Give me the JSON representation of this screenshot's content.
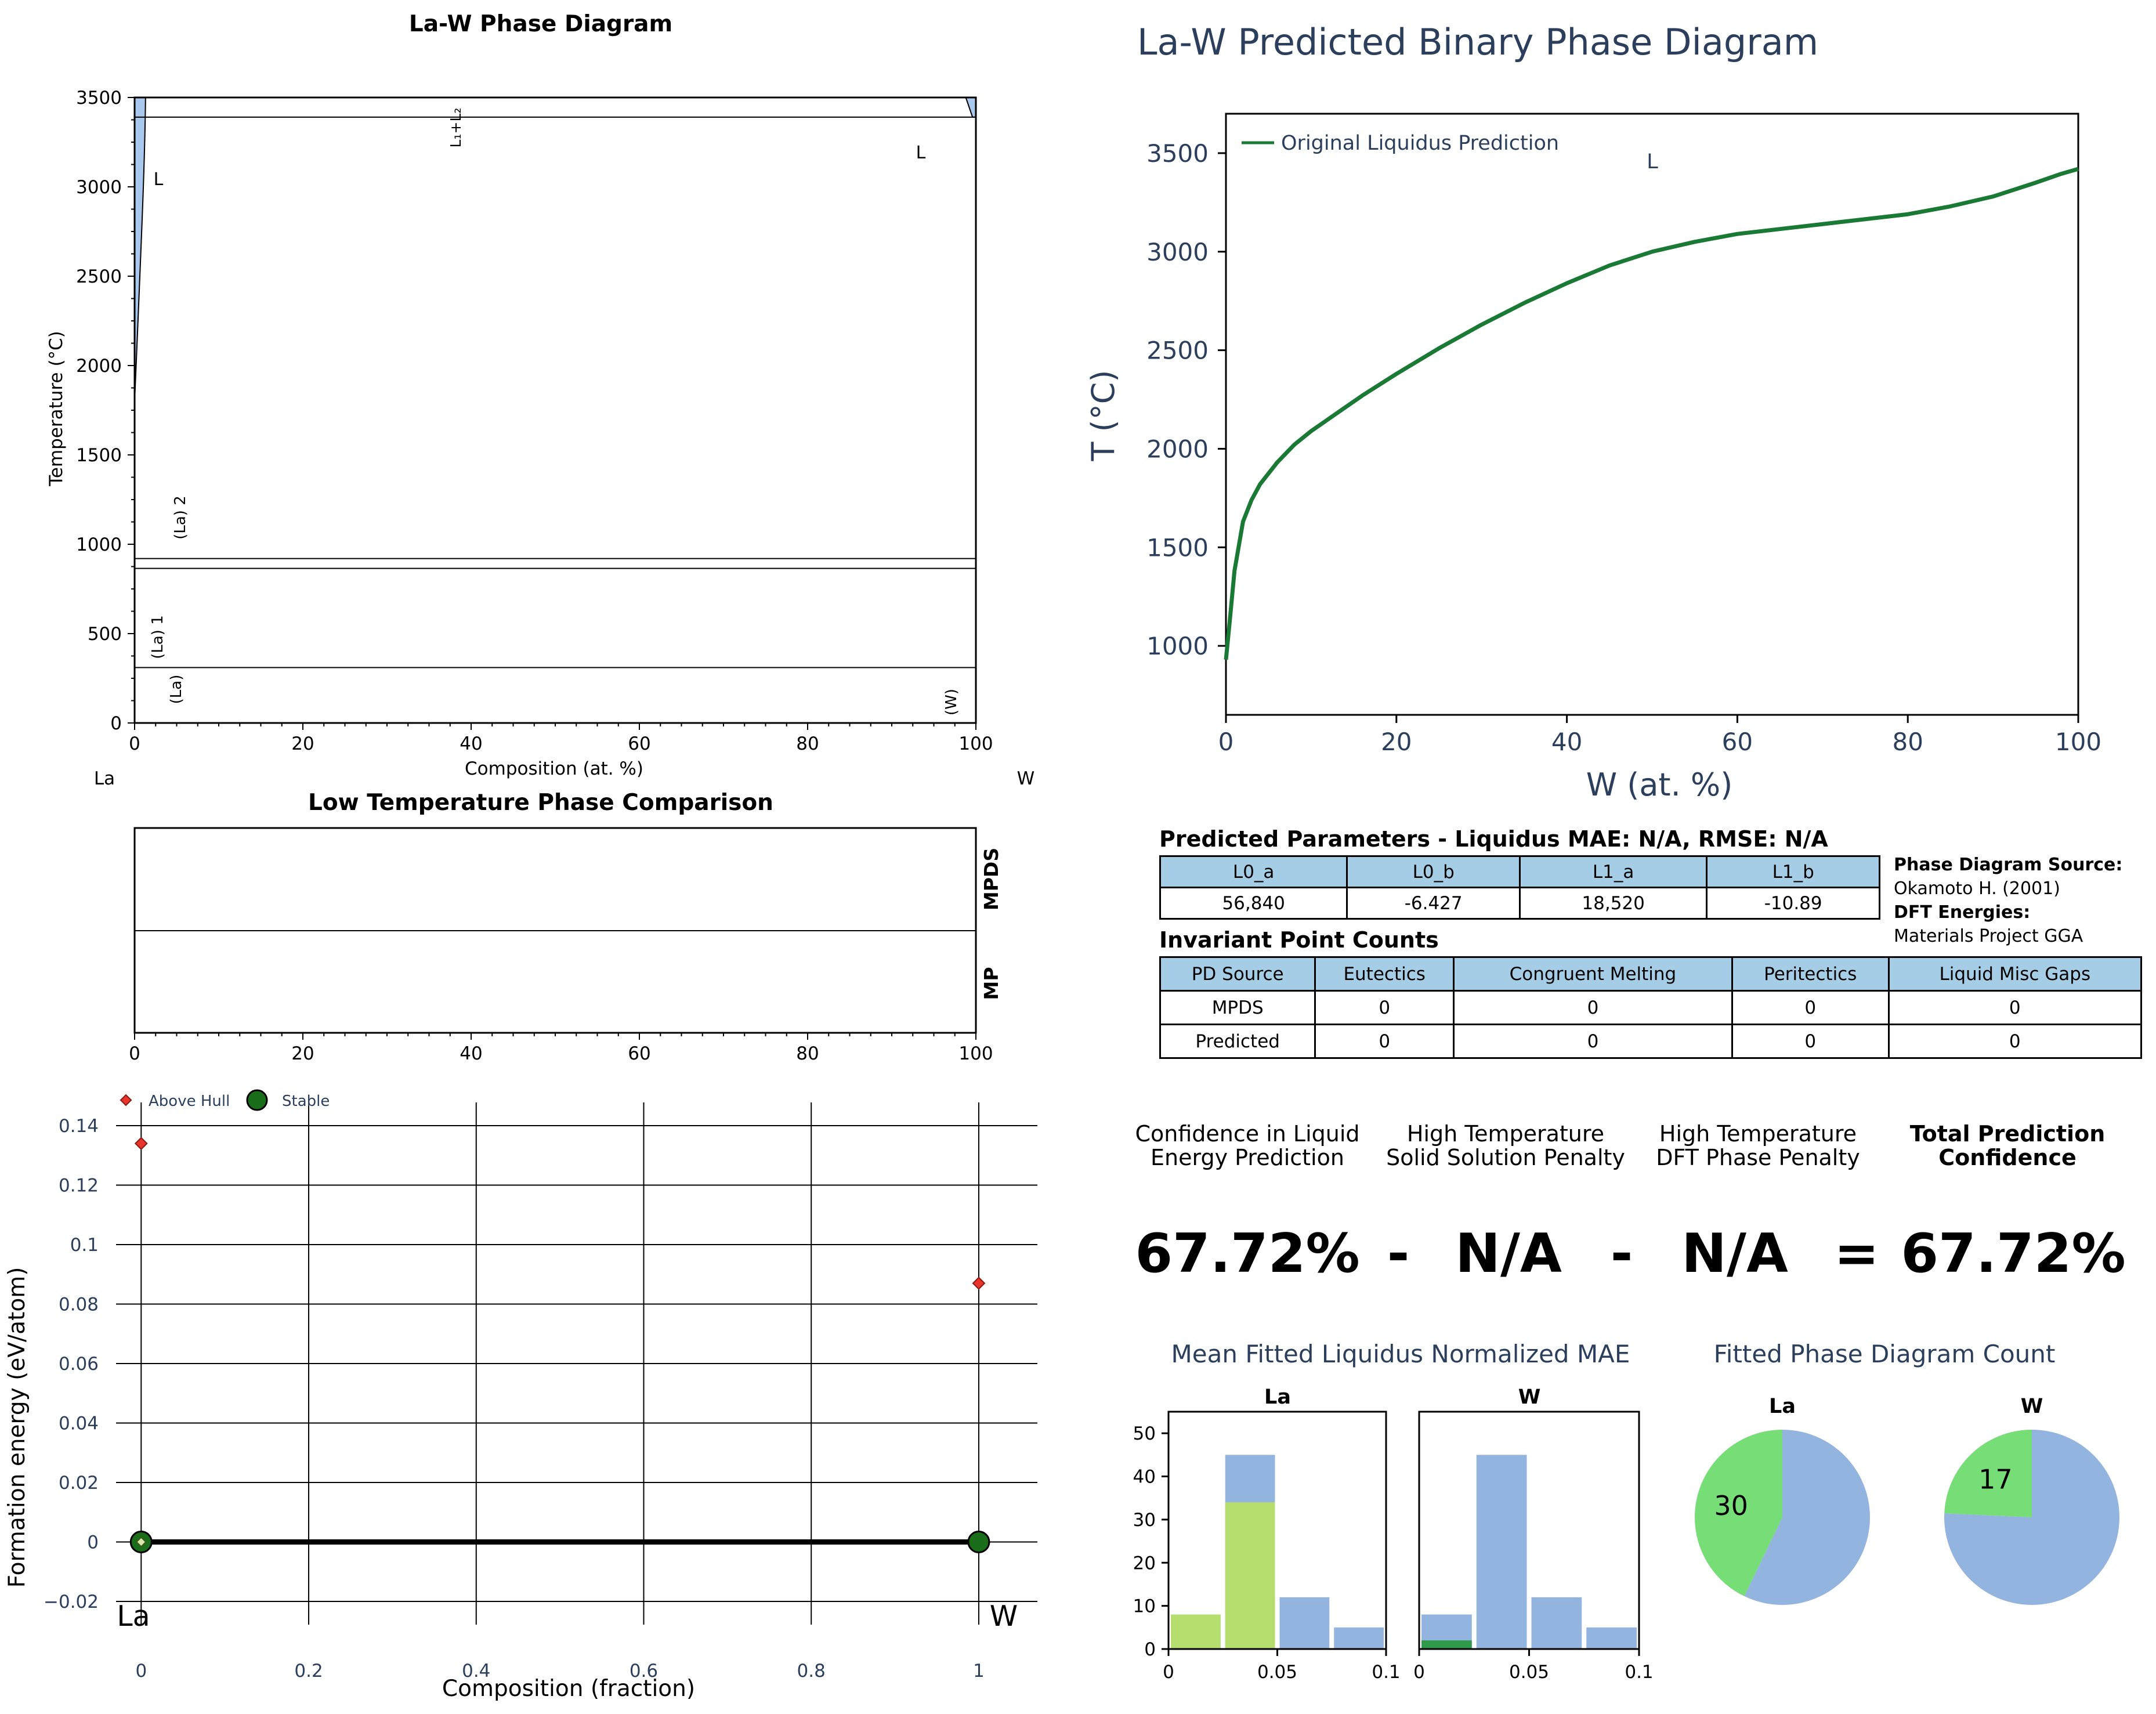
{
  "phase_diagram": {
    "title": "La-W Phase Diagram",
    "ylabel": "Temperature ($^\\circ$C)",
    "xlabel": "Composition (at. %)",
    "left_element": "La",
    "right_element": "W",
    "region_labels": {
      "L_left": "L",
      "L_right": "L",
      "L1L2": "L$_1$+L$_2$",
      "La2": "(La) 2",
      "La1": "(La) 1",
      "La": "(La)",
      "W": "(W)"
    }
  },
  "low_temp": {
    "title": "Low Temperature Phase Comparison",
    "row_labels": [
      "MPDS",
      "MP"
    ]
  },
  "hull": {
    "ylabel": "Formation energy (eV/atom)",
    "xlabel": "Composition (fraction)",
    "legend": [
      "Above Hull",
      "Stable"
    ],
    "left_element": "La",
    "right_element": "W"
  },
  "predicted": {
    "title": "La-W Predicted Binary Phase Diagram",
    "ylabel": "T (°C)",
    "xlabel": "W (at. %)",
    "legend": "Original Liquidus Prediction",
    "region_label": "L"
  },
  "params": {
    "title": "Predicted Parameters - Liquidus MAE: N/A, RMSE: N/A",
    "headers": [
      "L0_a",
      "L0_b",
      "L1_a",
      "L1_b"
    ],
    "values": [
      "56,840",
      "-6.427",
      "18,520",
      "-10.89"
    ]
  },
  "source": {
    "pd_label": "Phase Diagram Source:",
    "pd_value": "Okamoto H. (2001)",
    "dft_label": "DFT Energies:",
    "dft_value": "Materials Project GGA"
  },
  "invariants": {
    "title": "Invariant Point Counts",
    "headers": [
      "PD Source",
      "Eutectics",
      "Congruent Melting",
      "Peritectics",
      "Liquid Misc Gaps"
    ],
    "rows": [
      [
        "MPDS",
        "0",
        "0",
        "0",
        "0"
      ],
      [
        "Predicted",
        "0",
        "0",
        "0",
        "0"
      ]
    ]
  },
  "confidence": {
    "labels": [
      "Confidence in Liquid\nEnergy Prediction",
      "High Temperature\nSolid Solution Penalty",
      "High Temperature\nDFT Phase Penalty",
      "Total Prediction\nConfidence"
    ],
    "values": [
      "67.72%",
      "N/A",
      "N/A",
      "67.72%"
    ],
    "operators": [
      "-",
      "-",
      "="
    ]
  },
  "mae_title": "Mean Fitted Liquidus Normalized MAE",
  "count_title": "Fitted Phase Diagram Count",
  "colors": {
    "text_blue": "#2b3f5c",
    "liquidus": "#1a7a35",
    "hist_blue": "#93b4de",
    "hist_green": "#b5de6e",
    "hist_dark_green": "#2e9a4a",
    "pie_green": "#77dd77",
    "phase_fill": "#a8c8ee",
    "above_hull": "#e8342a",
    "stable": "#1a6e1a"
  },
  "chart_data": [
    {
      "type": "line",
      "title": "La-W Phase Diagram",
      "xlabel": "Composition (at. %)",
      "ylabel": "Temperature ($^\\circ$C)",
      "xlim": [
        0,
        100
      ],
      "ylim": [
        0,
        3500
      ],
      "xticks": [
        0,
        20,
        40,
        60,
        80,
        100
      ],
      "yticks": [
        0,
        500,
        1000,
        1500,
        2000,
        2500,
        3000,
        3500
      ],
      "horizontal_lines": [
        3390,
        920,
        865,
        310
      ],
      "series": []
    },
    {
      "type": "line",
      "title": "Low Temperature Phase Comparison",
      "xlim": [
        0,
        100
      ],
      "xticks": [
        0,
        20,
        40,
        60,
        80,
        100
      ],
      "series": []
    },
    {
      "type": "scatter",
      "xlabel": "Composition (fraction)",
      "ylabel": "Formation energy (eV/atom)",
      "xlim": [
        -0.03,
        1.07
      ],
      "ylim": [
        -0.02,
        0.14
      ],
      "xticks": [
        0,
        0.2,
        0.4,
        0.6,
        0.8,
        1
      ],
      "xticklabels": [
        "0",
        "0.2",
        "0.4",
        "0.6",
        "0.8",
        "1"
      ],
      "yticks": [
        -0.02,
        0,
        0.02,
        0.04,
        0.06,
        0.08,
        0.1,
        0.12,
        0.14
      ],
      "yticklabels": [
        "−0.02",
        "0",
        "0.02",
        "0.04",
        "0.06",
        "0.08",
        "0.1",
        "0.12",
        "0.14"
      ],
      "series": [
        {
          "name": "Above Hull",
          "points": [
            [
              0,
              0.134
            ],
            [
              1,
              0.087
            ]
          ]
        },
        {
          "name": "Stable",
          "points": [
            [
              0,
              0
            ],
            [
              1,
              0
            ]
          ]
        }
      ]
    },
    {
      "type": "line",
      "title": "La-W Predicted Binary Phase Diagram",
      "xlabel": "W (at. %)",
      "ylabel": "T (°C)",
      "xlim": [
        0,
        100
      ],
      "ylim": [
        650,
        3700
      ],
      "xticks": [
        0,
        20,
        40,
        60,
        80,
        100
      ],
      "yticks": [
        1000,
        1500,
        2000,
        2500,
        3000,
        3500
      ],
      "series": [
        {
          "name": "Original Liquidus Prediction",
          "x": [
            0,
            0.5,
            1,
            2,
            3,
            4,
            6,
            8,
            10,
            13,
            16,
            20,
            25,
            30,
            35,
            40,
            45,
            50,
            55,
            60,
            65,
            70,
            75,
            80,
            85,
            90,
            95,
            98,
            100
          ],
          "y": [
            930,
            1150,
            1380,
            1630,
            1740,
            1820,
            1930,
            2020,
            2090,
            2180,
            2270,
            2380,
            2510,
            2630,
            2740,
            2840,
            2930,
            3000,
            3050,
            3090,
            3115,
            3140,
            3165,
            3190,
            3230,
            3280,
            3350,
            3395,
            3420
          ]
        }
      ]
    },
    {
      "type": "bar",
      "title": "La",
      "xlim": [
        0,
        0.1
      ],
      "ylim": [
        0,
        55
      ],
      "xticks": [
        0,
        0.05,
        0.1
      ],
      "xticklabels": [
        "0",
        "0.05",
        "0.1"
      ],
      "yticks": [
        0,
        10,
        20,
        30,
        40,
        50
      ],
      "bins": [
        [
          0,
          0.025
        ],
        [
          0.025,
          0.05
        ],
        [
          0.05,
          0.075
        ],
        [
          0.075,
          0.1
        ]
      ],
      "series": [
        {
          "values": [
            8,
            45,
            12,
            5
          ]
        },
        {
          "values": [
            8,
            34,
            0,
            0
          ]
        }
      ]
    },
    {
      "type": "bar",
      "title": "W",
      "xlim": [
        0,
        0.1
      ],
      "ylim": [
        0,
        55
      ],
      "xticks": [
        0,
        0.05,
        0.1
      ],
      "xticklabels": [
        "0",
        "0.05",
        "0.1"
      ],
      "bins": [
        [
          0,
          0.025
        ],
        [
          0.025,
          0.05
        ],
        [
          0.05,
          0.075
        ],
        [
          0.075,
          0.1
        ]
      ],
      "series": [
        {
          "values": [
            8,
            45,
            12,
            5
          ]
        },
        {
          "values": [
            2,
            0,
            0,
            0
          ]
        }
      ]
    },
    {
      "type": "pie",
      "title": "La",
      "slices": [
        {
          "value": 30,
          "label": "30"
        },
        {
          "value": 40
        }
      ]
    },
    {
      "type": "pie",
      "title": "W",
      "slices": [
        {
          "value": 17,
          "label": "17"
        },
        {
          "value": 53
        }
      ]
    }
  ]
}
